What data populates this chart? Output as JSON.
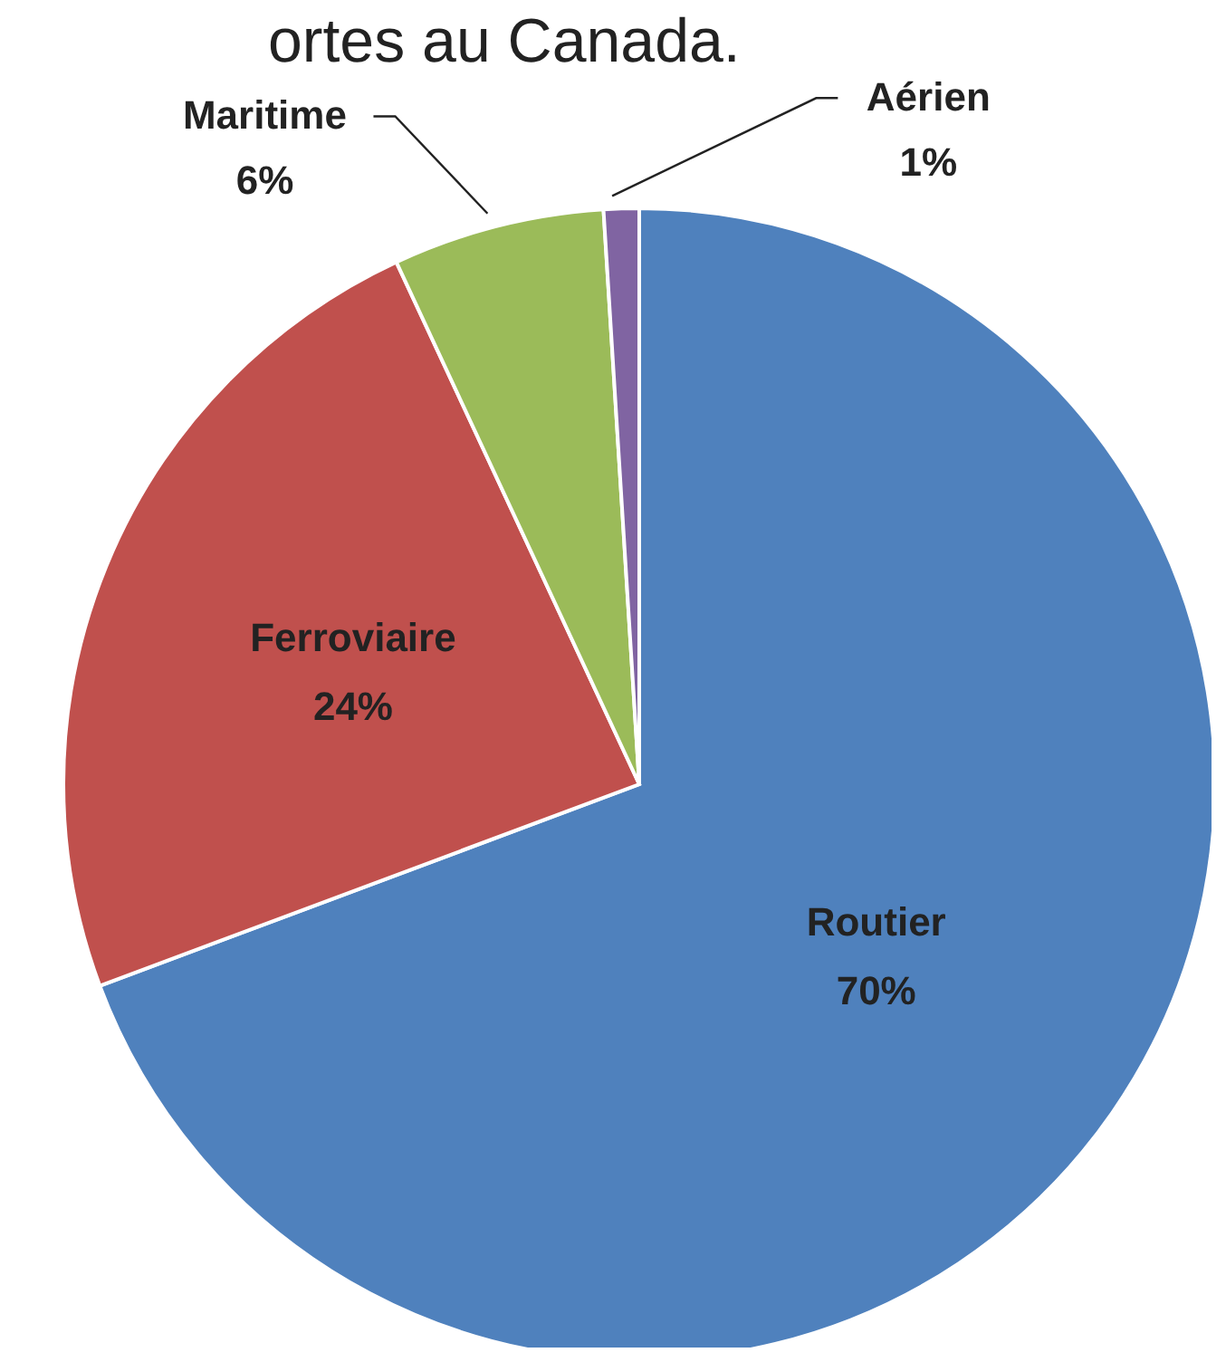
{
  "chart_data": {
    "type": "pie",
    "title": "ortes au Canada.",
    "categories": [
      "Routier",
      "Ferroviaire",
      "Maritime",
      "Aérien"
    ],
    "values": [
      70,
      24,
      6,
      1
    ],
    "colors": [
      "#4f81bd",
      "#c0504d",
      "#9bbb59",
      "#8064a2"
    ],
    "value_labels": [
      "70%",
      "24%",
      "6%",
      "1%"
    ]
  }
}
